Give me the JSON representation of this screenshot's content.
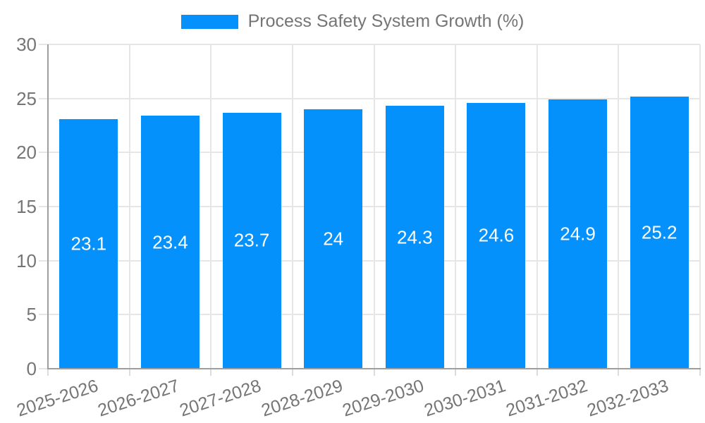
{
  "chart_data": {
    "type": "bar",
    "title": "Process Safety System Growth (%)",
    "categories": [
      "2025-2026",
      "2026-2027",
      "2027-2028",
      "2028-2029",
      "2029-2030",
      "2030-2031",
      "2031-2032",
      "2032-2033"
    ],
    "values": [
      23.1,
      23.4,
      23.7,
      24,
      24.3,
      24.6,
      24.9,
      25.2
    ],
    "xlabel": "",
    "ylabel": "",
    "ylim": [
      0,
      30
    ],
    "yticks": [
      0,
      5,
      10,
      15,
      20,
      25,
      30
    ],
    "grid": true,
    "legend_position": "top",
    "colors": {
      "bar": "#0591fc",
      "bar_label_text": "#ffffff",
      "axis_line": "#9e9e9e",
      "gridline": "#e6e6e6",
      "axis_text": "#757575"
    }
  }
}
